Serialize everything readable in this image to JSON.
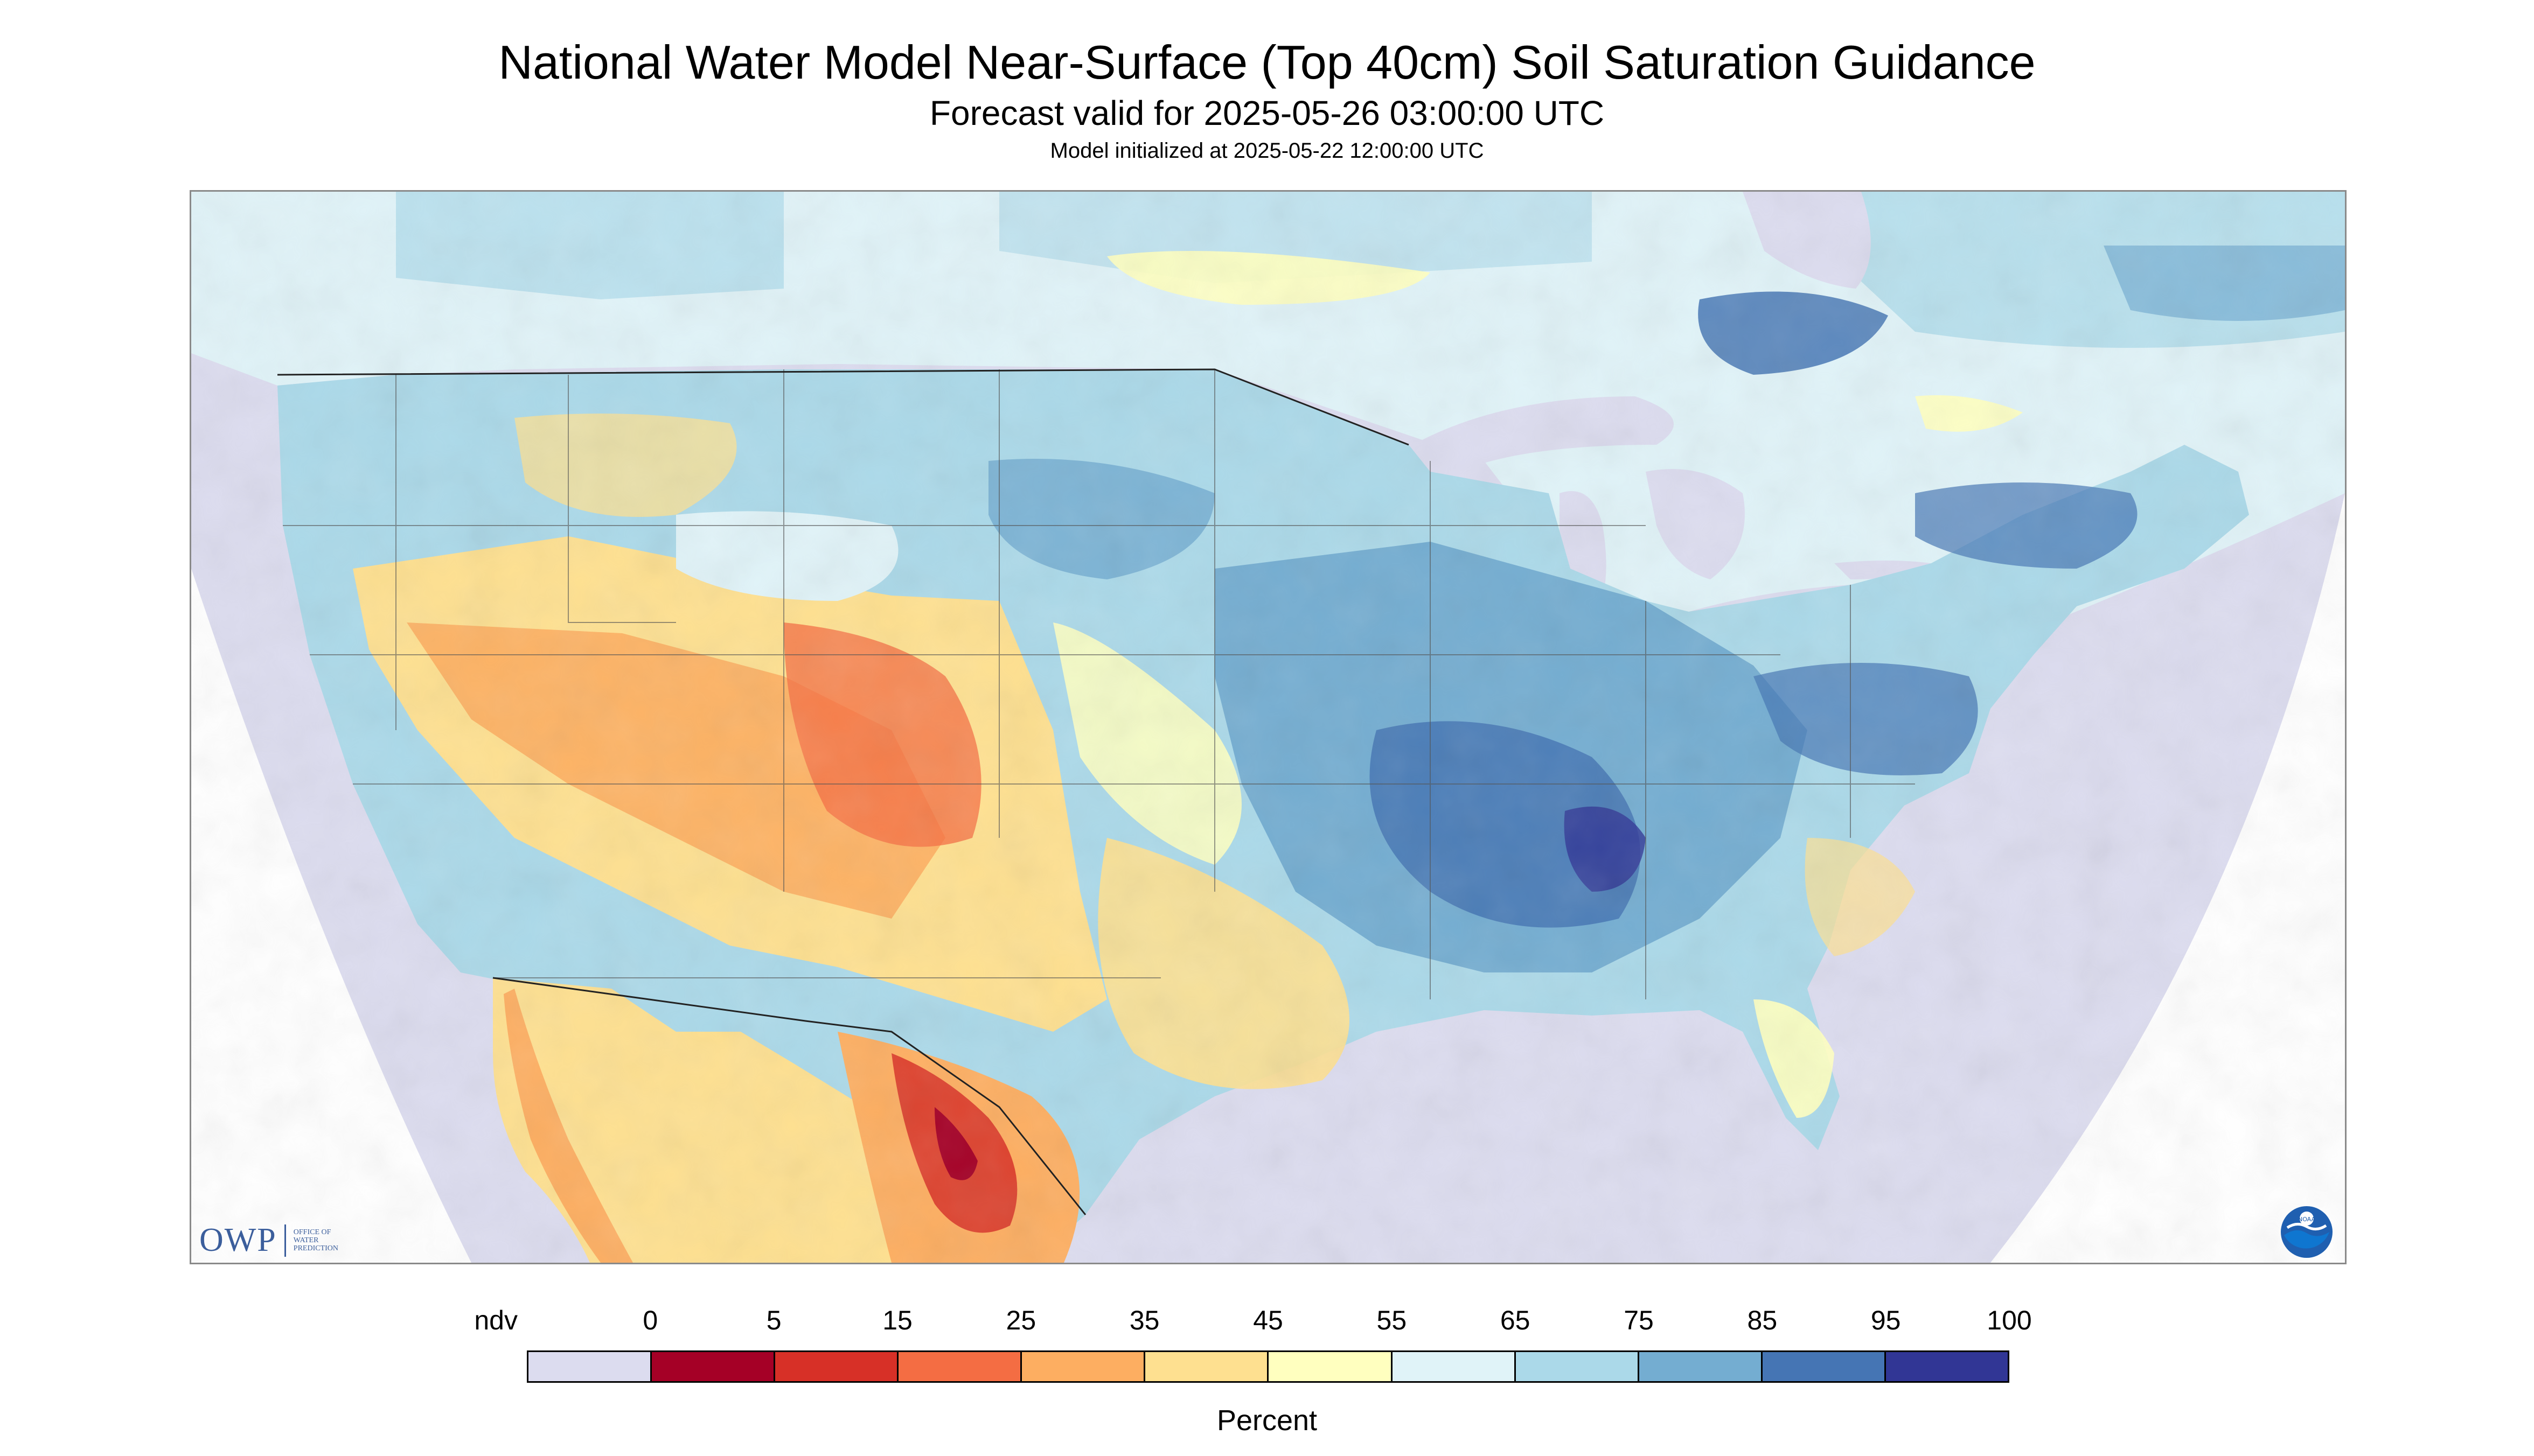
{
  "header": {
    "title": "National Water Model Near-Surface (Top 40cm) Soil Saturation Guidance",
    "subtitle": "Forecast valid for 2025-05-26 03:00:00 UTC",
    "init_line": "Model initialized at 2025-05-22 12:00:00 UTC"
  },
  "map": {
    "region": "Contiguous United States",
    "nodata_color": "#dcdcef",
    "background_color": "#ffffff"
  },
  "logos": {
    "owp_mark": "OWP",
    "owp_text_1": "Office of",
    "owp_text_2": "Water",
    "owp_text_3": "Prediction",
    "noaa_text": "NOAA"
  },
  "legend": {
    "unit": "Percent",
    "tick_labels": [
      "ndv",
      "0",
      "5",
      "15",
      "25",
      "35",
      "45",
      "55",
      "65",
      "75",
      "85",
      "95",
      "100"
    ],
    "colors": [
      "#dcdcef",
      "#a50026",
      "#d73027",
      "#f46d43",
      "#fdae61",
      "#fee090",
      "#ffffbf",
      "#e0f3f8",
      "#abd9e9",
      "#74add1",
      "#4575b4",
      "#313695"
    ]
  }
}
